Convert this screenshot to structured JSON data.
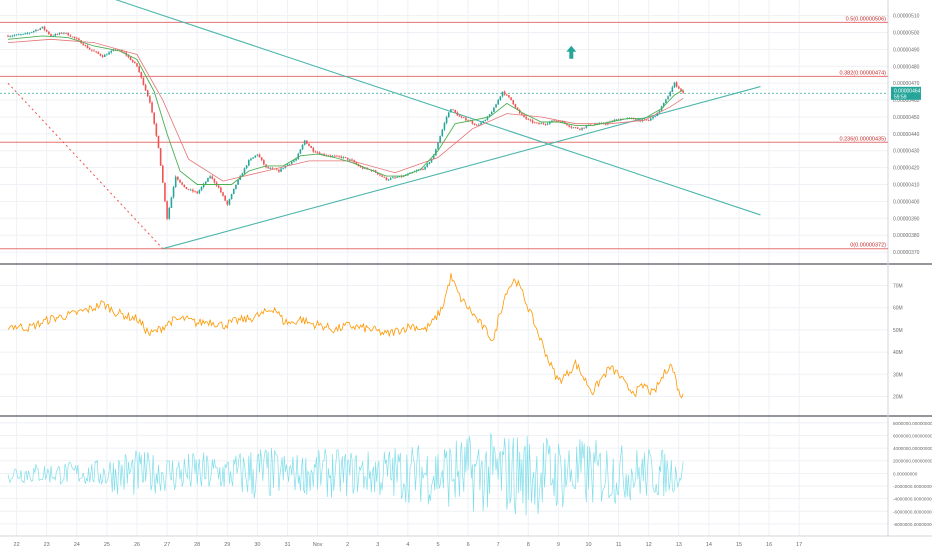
{
  "colors": {
    "candle_up": "#26a69a",
    "candle_down": "#ef5350",
    "ma_line": "#4caf50",
    "ma_slow": "#e57373",
    "fib_line": "#e57373",
    "trendline": "#4db6ac",
    "current_price": "#26a69a",
    "rsi_line": "#ff9800",
    "mom_line": "#80deea",
    "grid": "#eef1f5",
    "axis_text": "#6b6b6b",
    "arrow": "#26a69a"
  },
  "chart_data": [
    {
      "type": "candlestick",
      "panel": "price",
      "y_tick_labels": [
        "0.00000510",
        "0.00000500",
        "0.00000490",
        "0.00000480",
        "0.00000470",
        "0.00000460",
        "0.00000450",
        "0.00000440",
        "0.00000430",
        "0.00000420",
        "0.00000410",
        "0.00000400",
        "0.00000390",
        "0.00000380",
        "0.00000370"
      ],
      "y_ticks": [
        5.1e-06,
        5e-06,
        4.9e-06,
        4.8e-06,
        4.7e-06,
        4.6e-06,
        4.5e-06,
        4.4e-06,
        4.3e-06,
        4.2e-06,
        4.1e-06,
        4e-06,
        3.9e-06,
        3.8e-06,
        3.7e-06
      ],
      "ylim": [
        3.665e-06,
        5.145e-06
      ],
      "fib_levels": [
        {
          "label": "0.5(0.00000506)",
          "value": 5.06e-06
        },
        {
          "label": "0.382(0.00000474)",
          "value": 4.74e-06
        },
        {
          "label": "0.236(0.00000435)",
          "value": 4.35e-06
        },
        {
          "label": "0(0.00000372)",
          "value": 3.72e-06
        }
      ],
      "current_price": {
        "value": 4.64e-06,
        "label": "0.00000464",
        "countdown": "59:59"
      },
      "price_path": [
        [
          0,
          4.98e-06
        ],
        [
          4,
          4.99e-06
        ],
        [
          8,
          5.03e-06
        ],
        [
          10,
          4.98e-06
        ],
        [
          13,
          5e-06
        ],
        [
          16,
          4.96e-06
        ],
        [
          19,
          4.9e-06
        ],
        [
          22,
          4.86e-06
        ],
        [
          25,
          4.9e-06
        ],
        [
          27,
          4.88e-06
        ],
        [
          30,
          4.8e-06
        ],
        [
          33,
          4.59e-06
        ],
        [
          35,
          4.32e-06
        ],
        [
          37,
          3.9e-06
        ],
        [
          39,
          4.15e-06
        ],
        [
          41,
          4.08e-06
        ],
        [
          44,
          4.05e-06
        ],
        [
          47,
          4.15e-06
        ],
        [
          49,
          4.08e-06
        ],
        [
          51,
          3.98e-06
        ],
        [
          53,
          4.1e-06
        ],
        [
          56,
          4.24e-06
        ],
        [
          58,
          4.28e-06
        ],
        [
          60,
          4.2e-06
        ],
        [
          63,
          4.18e-06
        ],
        [
          65,
          4.22e-06
        ],
        [
          67,
          4.25e-06
        ],
        [
          69,
          4.36e-06
        ],
        [
          71,
          4.3e-06
        ],
        [
          73,
          4.28e-06
        ],
        [
          75,
          4.27e-06
        ],
        [
          78,
          4.26e-06
        ],
        [
          80,
          4.24e-06
        ],
        [
          82,
          4.2e-06
        ],
        [
          85,
          4.18e-06
        ],
        [
          88,
          4.13e-06
        ],
        [
          90,
          4.14e-06
        ],
        [
          92,
          4.15e-06
        ],
        [
          95,
          4.18e-06
        ],
        [
          97,
          4.2e-06
        ],
        [
          99,
          4.27e-06
        ],
        [
          100,
          4.35e-06
        ],
        [
          102,
          4.5e-06
        ],
        [
          103,
          4.55e-06
        ],
        [
          105,
          4.5e-06
        ],
        [
          107,
          4.48e-06
        ],
        [
          109,
          4.45e-06
        ],
        [
          111,
          4.48e-06
        ],
        [
          113,
          4.55e-06
        ],
        [
          115,
          4.65e-06
        ],
        [
          117,
          4.6e-06
        ],
        [
          119,
          4.52e-06
        ],
        [
          121,
          4.48e-06
        ],
        [
          123,
          4.46e-06
        ],
        [
          125,
          4.46e-06
        ],
        [
          127,
          4.48e-06
        ],
        [
          129,
          4.47e-06
        ],
        [
          131,
          4.44e-06
        ],
        [
          133,
          4.43e-06
        ],
        [
          135,
          4.45e-06
        ],
        [
          137,
          4.46e-06
        ],
        [
          139,
          4.46e-06
        ],
        [
          141,
          4.48e-06
        ],
        [
          143,
          4.49e-06
        ],
        [
          145,
          4.49e-06
        ],
        [
          147,
          4.48e-06
        ],
        [
          149,
          4.48e-06
        ],
        [
          151,
          4.52e-06
        ],
        [
          153,
          4.6e-06
        ],
        [
          155,
          4.7e-06
        ],
        [
          157,
          4.64e-06
        ]
      ],
      "ma_path": [
        [
          0,
          4.96e-06
        ],
        [
          8,
          4.98e-06
        ],
        [
          14,
          4.97e-06
        ],
        [
          20,
          4.92e-06
        ],
        [
          26,
          4.89e-06
        ],
        [
          30,
          4.84e-06
        ],
        [
          34,
          4.65e-06
        ],
        [
          37,
          4.4e-06
        ],
        [
          40,
          4.18e-06
        ],
        [
          44,
          4.1e-06
        ],
        [
          48,
          4.1e-06
        ],
        [
          52,
          4.1e-06
        ],
        [
          56,
          4.18e-06
        ],
        [
          60,
          4.21e-06
        ],
        [
          64,
          4.21e-06
        ],
        [
          68,
          4.27e-06
        ],
        [
          72,
          4.28e-06
        ],
        [
          76,
          4.26e-06
        ],
        [
          80,
          4.23e-06
        ],
        [
          84,
          4.19e-06
        ],
        [
          88,
          4.15e-06
        ],
        [
          92,
          4.15e-06
        ],
        [
          96,
          4.19e-06
        ],
        [
          100,
          4.3e-06
        ],
        [
          104,
          4.46e-06
        ],
        [
          108,
          4.48e-06
        ],
        [
          112,
          4.5e-06
        ],
        [
          116,
          4.58e-06
        ],
        [
          120,
          4.52e-06
        ],
        [
          124,
          4.47e-06
        ],
        [
          128,
          4.47e-06
        ],
        [
          132,
          4.45e-06
        ],
        [
          136,
          4.45e-06
        ],
        [
          140,
          4.47e-06
        ],
        [
          144,
          4.49e-06
        ],
        [
          148,
          4.49e-06
        ],
        [
          152,
          4.55e-06
        ],
        [
          155,
          4.63e-06
        ],
        [
          157,
          4.66e-06
        ]
      ],
      "ma_slow_path": [
        [
          0,
          4.94e-06
        ],
        [
          10,
          4.96e-06
        ],
        [
          20,
          4.94e-06
        ],
        [
          30,
          4.87e-06
        ],
        [
          36,
          4.6e-06
        ],
        [
          42,
          4.25e-06
        ],
        [
          50,
          4.12e-06
        ],
        [
          60,
          4.18e-06
        ],
        [
          70,
          4.24e-06
        ],
        [
          80,
          4.24e-06
        ],
        [
          90,
          4.17e-06
        ],
        [
          100,
          4.26e-06
        ],
        [
          108,
          4.43e-06
        ],
        [
          116,
          4.52e-06
        ],
        [
          124,
          4.5e-06
        ],
        [
          132,
          4.46e-06
        ],
        [
          140,
          4.46e-06
        ],
        [
          148,
          4.48e-06
        ],
        [
          154,
          4.56e-06
        ],
        [
          157,
          4.61e-06
        ]
      ],
      "trendlines": [
        {
          "from": [
            -5,
            5.45e-06
          ],
          "to": [
            175,
            3.92e-06
          ]
        },
        {
          "from": [
            36,
            3.72e-06
          ],
          "to": [
            175,
            4.68e-06
          ]
        }
      ],
      "dotted_line": {
        "from": [
          0,
          4.7e-06
        ],
        "to": [
          36,
          3.72e-06
        ]
      },
      "arrow_at": {
        "x": 131,
        "value": 4.88e-06
      }
    },
    {
      "type": "line",
      "panel": "oscillator",
      "y_tick_labels": [
        "70M",
        "60M",
        "50M",
        "40M",
        "30M",
        "20M"
      ],
      "y_ticks": [
        70,
        60,
        50,
        40,
        30,
        20
      ],
      "ylim": [
        13,
        77
      ],
      "values_path": [
        [
          0,
          52
        ],
        [
          5,
          51
        ],
        [
          10,
          55
        ],
        [
          15,
          57
        ],
        [
          20,
          60
        ],
        [
          22,
          62
        ],
        [
          25,
          58
        ],
        [
          28,
          56
        ],
        [
          30,
          55
        ],
        [
          33,
          48
        ],
        [
          35,
          50
        ],
        [
          38,
          54
        ],
        [
          41,
          55
        ],
        [
          44,
          53
        ],
        [
          47,
          54
        ],
        [
          50,
          52
        ],
        [
          53,
          54
        ],
        [
          56,
          55
        ],
        [
          59,
          57
        ],
        [
          62,
          60
        ],
        [
          64,
          54
        ],
        [
          66,
          53
        ],
        [
          68,
          55
        ],
        [
          70,
          53
        ],
        [
          73,
          52
        ],
        [
          76,
          50
        ],
        [
          79,
          52
        ],
        [
          82,
          51
        ],
        [
          85,
          50
        ],
        [
          88,
          48
        ],
        [
          91,
          50
        ],
        [
          94,
          52
        ],
        [
          97,
          50
        ],
        [
          99,
          54
        ],
        [
          101,
          60
        ],
        [
          103,
          74
        ],
        [
          105,
          65
        ],
        [
          107,
          60
        ],
        [
          109,
          55
        ],
        [
          111,
          50
        ],
        [
          113,
          45
        ],
        [
          114,
          55
        ],
        [
          116,
          68
        ],
        [
          118,
          73
        ],
        [
          120,
          65
        ],
        [
          122,
          55
        ],
        [
          124,
          45
        ],
        [
          126,
          35
        ],
        [
          128,
          27
        ],
        [
          130,
          30
        ],
        [
          132,
          35
        ],
        [
          134,
          28
        ],
        [
          136,
          22
        ],
        [
          138,
          28
        ],
        [
          140,
          33
        ],
        [
          142,
          30
        ],
        [
          144,
          24
        ],
        [
          146,
          22
        ],
        [
          148,
          25
        ],
        [
          150,
          21
        ],
        [
          152,
          28
        ],
        [
          154,
          35
        ],
        [
          155,
          30
        ],
        [
          156,
          22
        ],
        [
          157,
          20
        ]
      ]
    },
    {
      "type": "line",
      "panel": "momentum",
      "y_tick_labels": [
        "8000000.00000000",
        "6000000.00000000",
        "4000000.00000000",
        "2000000.00000000",
        "0.00000000",
        "-2000000.00000000",
        "-4000000.00000000",
        "-6000000.00000000",
        "-8000000.00000000"
      ],
      "y_ticks": [
        8,
        6,
        4,
        2,
        0,
        -2,
        -4,
        -6,
        -8
      ],
      "ylim": [
        -9.6,
        8.6
      ],
      "amplitude_path": [
        [
          0,
          1.5
        ],
        [
          20,
          2.0
        ],
        [
          28,
          4.0
        ],
        [
          36,
          3.0
        ],
        [
          44,
          3.5
        ],
        [
          52,
          3.0
        ],
        [
          58,
          5.0
        ],
        [
          66,
          3.0
        ],
        [
          74,
          4.0
        ],
        [
          82,
          3.5
        ],
        [
          90,
          4.5
        ],
        [
          98,
          5.0
        ],
        [
          104,
          6.0
        ],
        [
          112,
          6.5
        ],
        [
          120,
          7.0
        ],
        [
          128,
          6.0
        ],
        [
          136,
          5.5
        ],
        [
          144,
          4.5
        ],
        [
          152,
          4.0
        ],
        [
          157,
          2.5
        ]
      ]
    }
  ],
  "x_axis": {
    "labels": [
      {
        "x": 2,
        "text": "22"
      },
      {
        "x": 9,
        "text": "23"
      },
      {
        "x": 16,
        "text": "24"
      },
      {
        "x": 23,
        "text": "25"
      },
      {
        "x": 30,
        "text": "26"
      },
      {
        "x": 37,
        "text": "27"
      },
      {
        "x": 44,
        "text": "28"
      },
      {
        "x": 51,
        "text": "29"
      },
      {
        "x": 58,
        "text": "30"
      },
      {
        "x": 65,
        "text": "31"
      },
      {
        "x": 72,
        "text": "Nov"
      },
      {
        "x": 79,
        "text": "2"
      },
      {
        "x": 86,
        "text": "3"
      },
      {
        "x": 93,
        "text": "4"
      },
      {
        "x": 100,
        "text": "5"
      },
      {
        "x": 107,
        "text": "6"
      },
      {
        "x": 114,
        "text": "7"
      },
      {
        "x": 121,
        "text": "8"
      },
      {
        "x": 128,
        "text": "9"
      },
      {
        "x": 135,
        "text": "10"
      },
      {
        "x": 142,
        "text": "11"
      },
      {
        "x": 149,
        "text": "12"
      },
      {
        "x": 156,
        "text": "13"
      },
      {
        "x": 163,
        "text": "14"
      },
      {
        "x": 170,
        "text": "15"
      },
      {
        "x": 177,
        "text": "16"
      },
      {
        "x": 184,
        "text": "17"
      }
    ]
  }
}
